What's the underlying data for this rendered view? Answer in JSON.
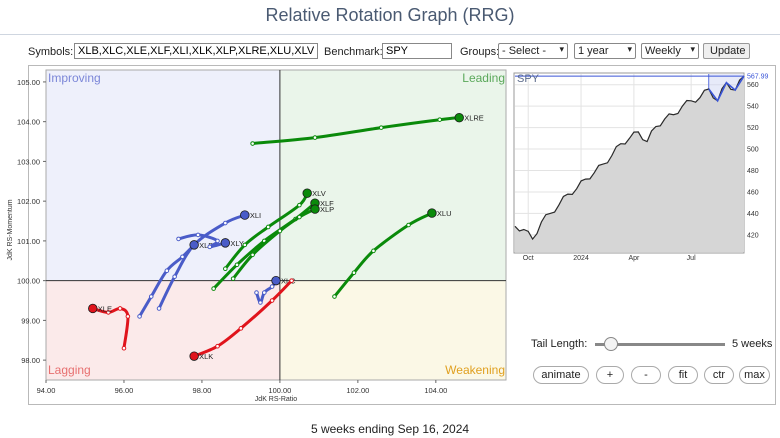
{
  "header": {
    "title": "Relative Rotation Graph (RRG)"
  },
  "controls": {
    "symbols_label": "Symbols:",
    "symbols_value": "XLB,XLC,XLE,XLF,XLI,XLK,XLP,XLRE,XLU,XLV,XL",
    "benchmark_label": "Benchmark:",
    "benchmark_value": "SPY",
    "groups_label": "Groups:",
    "groups_selected": "- Select -",
    "period_selected": "1 year",
    "frequency_selected": "Weekly",
    "update_label": "Update"
  },
  "tail": {
    "label": "Tail Length:",
    "value_label": "5 weeks",
    "weeks": 5,
    "slider_fraction": 0.12
  },
  "buttons": {
    "animate": "animate",
    "plus": "+",
    "minus": "-",
    "fit": "fit",
    "ctr": "ctr",
    "max": "max"
  },
  "caption": "5 weeks ending Sep 16, 2024",
  "colors": {
    "improving_bg": "#eef0fb",
    "leading_bg": "#eaf5ea",
    "lagging_bg": "#fbeaea",
    "weakening_bg": "#fbf8e6",
    "green": "#0a8a0a",
    "blue": "#4a5cc8",
    "red": "#e0141c",
    "price_fill": "#d6d6d6",
    "price_line": "#2a2a2a",
    "price_accent": "#3a55d8"
  },
  "chart_data": [
    {
      "type": "scatter",
      "xlabel": "JdK RS-Ratio",
      "ylabel": "JdK RS-Momentum",
      "xlim": [
        94,
        105.8
      ],
      "ylim": [
        97.5,
        105.3
      ],
      "xticks": [
        "94.00",
        "96.00",
        "98.00",
        "100.00",
        "102.00",
        "104.00"
      ],
      "yticks": [
        "98.00",
        "99.00",
        "100.00",
        "101.00",
        "102.00",
        "103.00",
        "104.00",
        "105.00"
      ],
      "quadrants": {
        "top_left": "Improving",
        "top_right": "Leading",
        "bottom_left": "Lagging",
        "bottom_right": "Weakening"
      },
      "series": [
        {
          "name": "XLRE",
          "color": "green",
          "points": [
            [
              99.3,
              103.45
            ],
            [
              100.9,
              103.6
            ],
            [
              102.6,
              103.85
            ],
            [
              104.1,
              104.05
            ],
            [
              104.6,
              104.1
            ]
          ]
        },
        {
          "name": "XLU",
          "color": "green",
          "points": [
            [
              101.4,
              99.6
            ],
            [
              101.9,
              100.2
            ],
            [
              102.4,
              100.75
            ],
            [
              103.3,
              101.4
            ],
            [
              103.9,
              101.7
            ]
          ]
        },
        {
          "name": "XLV",
          "color": "green",
          "points": [
            [
              98.6,
              100.3
            ],
            [
              99.1,
              100.9
            ],
            [
              99.7,
              101.35
            ],
            [
              100.5,
              101.9
            ],
            [
              100.7,
              102.2
            ]
          ]
        },
        {
          "name": "XLF",
          "color": "green",
          "points": [
            [
              98.3,
              99.8
            ],
            [
              98.9,
              100.4
            ],
            [
              99.6,
              101.0
            ],
            [
              100.4,
              101.55
            ],
            [
              100.9,
              101.95
            ]
          ]
        },
        {
          "name": "XLP",
          "color": "green",
          "points": [
            [
              98.8,
              100.05
            ],
            [
              99.3,
              100.65
            ],
            [
              100.0,
              101.25
            ],
            [
              100.5,
              101.6
            ],
            [
              100.9,
              101.8
            ]
          ]
        },
        {
          "name": "XLI",
          "color": "blue",
          "points": [
            [
              96.9,
              99.3
            ],
            [
              97.3,
              100.1
            ],
            [
              97.8,
              100.9
            ],
            [
              98.6,
              101.45
            ],
            [
              99.1,
              101.65
            ]
          ]
        },
        {
          "name": "XLB",
          "color": "blue",
          "points": [
            [
              96.4,
              99.1
            ],
            [
              96.7,
              99.6
            ],
            [
              97.1,
              100.25
            ],
            [
              97.5,
              100.6
            ],
            [
              97.8,
              100.9
            ]
          ]
        },
        {
          "name": "XLY",
          "color": "blue",
          "points": [
            [
              97.4,
              101.05
            ],
            [
              97.9,
              101.15
            ],
            [
              98.4,
              101.0
            ],
            [
              98.2,
              100.85
            ],
            [
              98.6,
              100.95
            ]
          ]
        },
        {
          "name": "XLC",
          "color": "blue",
          "points": [
            [
              99.4,
              99.7
            ],
            [
              99.5,
              99.45
            ],
            [
              99.6,
              99.7
            ],
            [
              99.8,
              99.85
            ],
            [
              99.9,
              100.0
            ]
          ]
        },
        {
          "name": "XLE",
          "color": "red",
          "points": [
            [
              96.0,
              98.3
            ],
            [
              96.1,
              99.1
            ],
            [
              95.9,
              99.3
            ],
            [
              95.6,
              99.2
            ],
            [
              95.2,
              99.3
            ]
          ]
        },
        {
          "name": "XLK",
          "color": "red",
          "points": [
            [
              100.3,
              100.0
            ],
            [
              99.8,
              99.5
            ],
            [
              99.0,
              98.8
            ],
            [
              98.4,
              98.35
            ],
            [
              97.8,
              98.1
            ]
          ]
        }
      ]
    },
    {
      "type": "line",
      "title": "SPY",
      "last_value_label": "567.99",
      "ylim": [
        400,
        567.99
      ],
      "yticks": [
        "420",
        "440",
        "460",
        "480",
        "500",
        "520",
        "540",
        "560"
      ],
      "xticks": [
        "Oct",
        "2024",
        "Apr",
        "Jul"
      ],
      "x_weeks": [
        0,
        2,
        4,
        6,
        8,
        10,
        12,
        14,
        16,
        18,
        20,
        22,
        24,
        26,
        28,
        30,
        32,
        34,
        36,
        38,
        40,
        42,
        44,
        46,
        48,
        50,
        52
      ],
      "values": [
        428,
        425,
        416,
        432,
        440,
        448,
        458,
        463,
        472,
        478,
        486,
        494,
        505,
        510,
        516,
        507,
        521,
        528,
        532,
        540,
        545,
        548,
        556,
        545,
        562,
        555,
        568
      ]
    }
  ]
}
